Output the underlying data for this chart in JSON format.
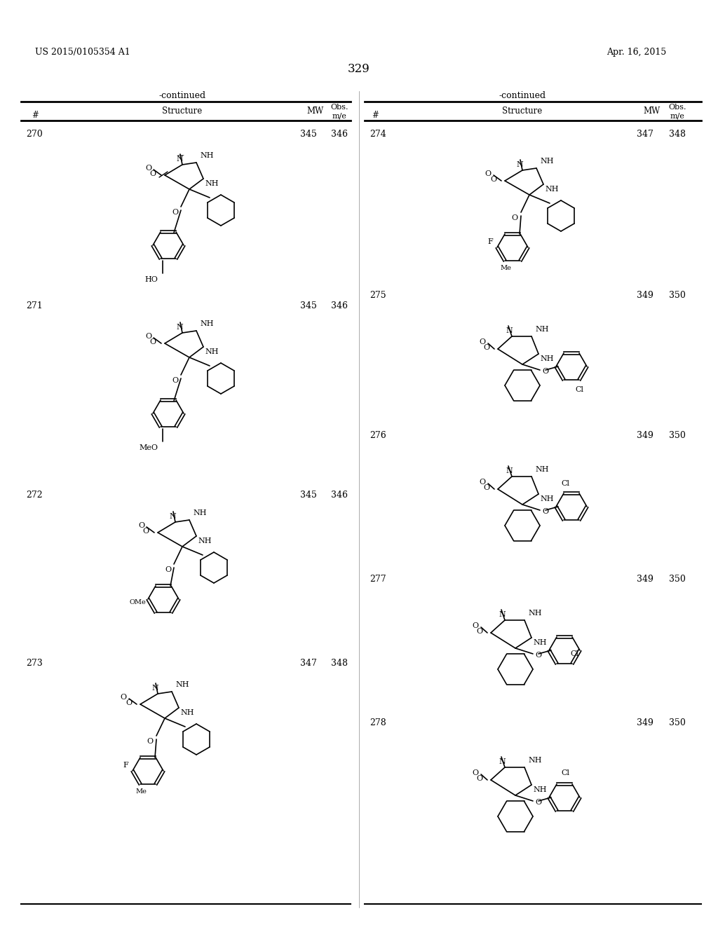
{
  "page_number": "329",
  "patent_number": "US 2015/0105354 A1",
  "patent_date": "Apr. 16, 2015",
  "background_color": "#ffffff",
  "text_color": "#000000",
  "table_header": [
    "-continued",
    "-continued"
  ],
  "col_headers": [
    "#",
    "Structure",
    "MW",
    "Obs.\nm/e"
  ],
  "entries_left": [
    {
      "num": "270",
      "mw": "345",
      "obs": "346"
    },
    {
      "num": "271",
      "mw": "345",
      "obs": "346"
    },
    {
      "num": "272",
      "mw": "345",
      "obs": "346"
    },
    {
      "num": "273",
      "mw": "347",
      "obs": "348"
    }
  ],
  "entries_right": [
    {
      "num": "274",
      "mw": "347",
      "obs": "348"
    },
    {
      "num": "275",
      "mw": "349",
      "obs": "350"
    },
    {
      "num": "276",
      "mw": "349",
      "obs": "350"
    },
    {
      "num": "277",
      "mw": "349",
      "obs": "350"
    },
    {
      "num": "278",
      "mw": "349",
      "obs": "350"
    }
  ]
}
